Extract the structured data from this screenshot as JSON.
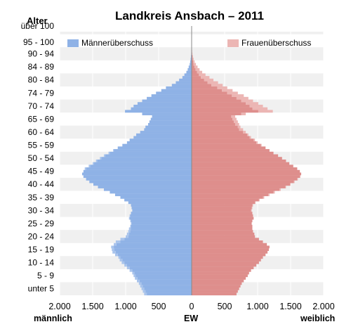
{
  "chart_data": {
    "type": "bar",
    "orientation": "horizontal",
    "subtype": "population-pyramid",
    "title": "Landkreis Ansbach – 2011",
    "yaxis_title": "Alter",
    "age_group_labels": [
      "unter 5",
      "5 - 9",
      "10 - 14",
      "15 - 19",
      "20 - 24",
      "25 - 29",
      "30 - 34",
      "35 - 39",
      "40 - 44",
      "45 - 49",
      "50 - 54",
      "55 - 59",
      "60 - 64",
      "65 - 69",
      "70 - 74",
      "74 - 79",
      "80 - 84",
      "84 - 89",
      "90 - 94",
      "95 - 100",
      "über 100"
    ],
    "x_tick_labels": [
      "2.000",
      "1.500",
      "1.000",
      "500",
      "0",
      "500",
      "1.000",
      "1.500",
      "2.000"
    ],
    "xlabel_left": "männlich",
    "xlabel_center": "EW",
    "xlabel_right": "weiblich",
    "xlim": [
      -2000,
      2000
    ],
    "legend": [
      "Männerüberschuss",
      "Frauenüberschuss"
    ],
    "legend_placement": "top",
    "grid": true,
    "ages": [
      0,
      1,
      2,
      3,
      4,
      5,
      6,
      7,
      8,
      9,
      10,
      11,
      12,
      13,
      14,
      15,
      16,
      17,
      18,
      19,
      20,
      21,
      22,
      23,
      24,
      25,
      26,
      27,
      28,
      29,
      30,
      31,
      32,
      33,
      34,
      35,
      36,
      37,
      38,
      39,
      40,
      41,
      42,
      43,
      44,
      45,
      46,
      47,
      48,
      49,
      50,
      51,
      52,
      53,
      54,
      55,
      56,
      57,
      58,
      59,
      60,
      61,
      62,
      63,
      64,
      65,
      66,
      67,
      68,
      69,
      70,
      71,
      72,
      73,
      74,
      75,
      76,
      77,
      78,
      79,
      80,
      81,
      82,
      83,
      84,
      85,
      86,
      87,
      88,
      89,
      90,
      91,
      92,
      93,
      94,
      95,
      96,
      97,
      98,
      99,
      100
    ],
    "series": [
      {
        "name": "männlich",
        "values": [
          720,
          740,
          760,
          780,
          800,
          830,
          860,
          880,
          900,
          940,
          980,
          1020,
          1060,
          1090,
          1110,
          1160,
          1200,
          1210,
          1220,
          1180,
          1150,
          1080,
          1000,
          980,
          960,
          950,
          930,
          920,
          930,
          950,
          940,
          920,
          900,
          910,
          920,
          960,
          1020,
          1080,
          1160,
          1240,
          1330,
          1420,
          1490,
          1550,
          1600,
          1640,
          1660,
          1640,
          1620,
          1560,
          1500,
          1450,
          1390,
          1330,
          1260,
          1190,
          1120,
          1050,
          980,
          940,
          880,
          840,
          780,
          720,
          700,
          660,
          640,
          620,
          600,
          750,
          1010,
          920,
          880,
          820,
          750,
          680,
          610,
          540,
          460,
          390,
          300,
          240,
          190,
          140,
          110,
          80,
          60,
          45,
          30,
          22,
          15,
          10,
          6,
          4,
          2,
          1,
          1,
          0,
          0,
          0,
          0
        ]
      },
      {
        "name": "weiblich",
        "values": [
          680,
          700,
          720,
          740,
          760,
          790,
          820,
          850,
          870,
          900,
          940,
          980,
          1020,
          1050,
          1080,
          1120,
          1150,
          1170,
          1180,
          1140,
          1080,
          1020,
          960,
          950,
          930,
          920,
          920,
          910,
          920,
          940,
          930,
          920,
          910,
          920,
          930,
          970,
          1030,
          1100,
          1180,
          1260,
          1350,
          1430,
          1500,
          1560,
          1610,
          1650,
          1660,
          1640,
          1600,
          1540,
          1480,
          1430,
          1370,
          1310,
          1240,
          1180,
          1120,
          1060,
          1000,
          960,
          900,
          860,
          820,
          780,
          740,
          720,
          700,
          680,
          660,
          820,
          1230,
          1150,
          1080,
          1010,
          930,
          860,
          790,
          700,
          620,
          540,
          470,
          400,
          330,
          270,
          210,
          160,
          120,
          90,
          65,
          45,
          30,
          20,
          12,
          7,
          4,
          2,
          1,
          1,
          0,
          0,
          0
        ]
      }
    ]
  },
  "colors": {
    "male": "#8fb2e6",
    "male_surplus": "#a9c4ec",
    "female": "#de8e8c",
    "female_surplus": "#ecb6b4",
    "band": "#f0f0f0",
    "center_line": "#888888"
  }
}
